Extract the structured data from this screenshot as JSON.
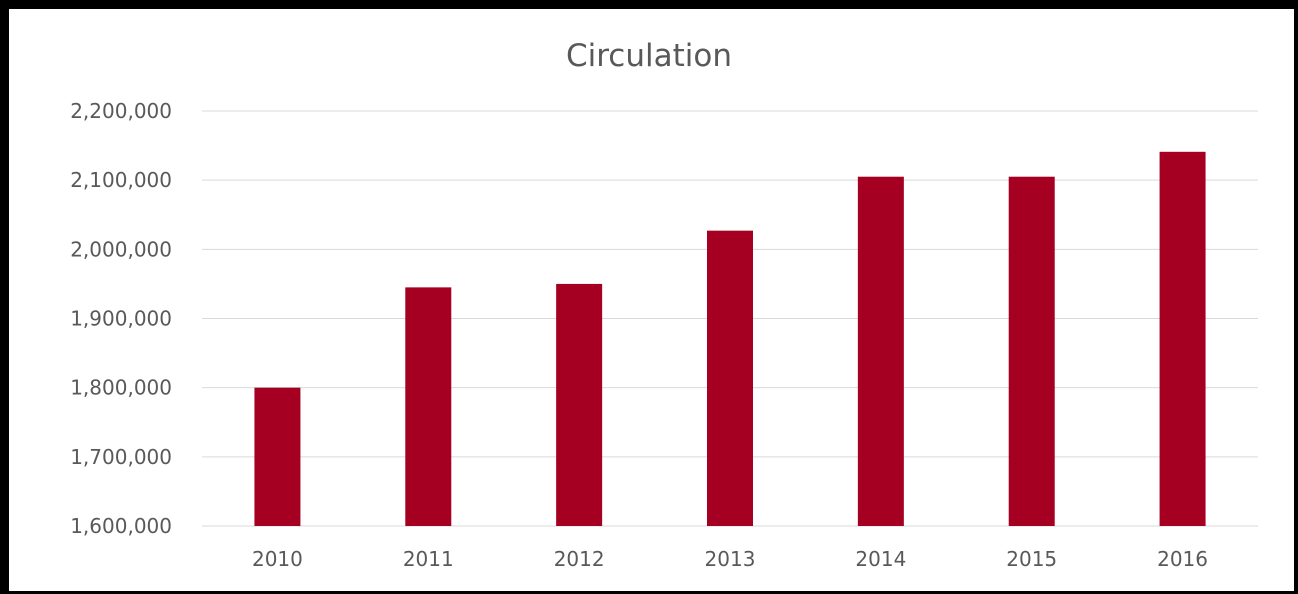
{
  "chart_data": {
    "type": "bar",
    "title": "Circulation",
    "xlabel": "",
    "ylabel": "",
    "categories": [
      "2010",
      "2011",
      "2012",
      "2013",
      "2014",
      "2015",
      "2016"
    ],
    "values": [
      1800000,
      1945000,
      1950000,
      2027000,
      2105000,
      2105000,
      2141000
    ],
    "ylim": [
      1600000,
      2200000
    ],
    "yticks": [
      1600000,
      1700000,
      1800000,
      1900000,
      2000000,
      2100000,
      2200000
    ],
    "ytick_labels": [
      "1,600,000",
      "1,700,000",
      "1,800,000",
      "1,900,000",
      "2,000,000",
      "2,100,000",
      "2,200,000"
    ],
    "grid": true,
    "legend": "none",
    "colors": {
      "bar": "#A50021",
      "grid": "#D9D9D9",
      "text": "#595959"
    }
  }
}
